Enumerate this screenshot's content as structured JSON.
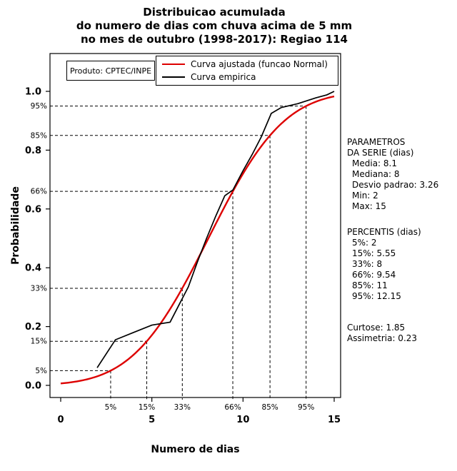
{
  "title": {
    "line1": "Distribuicao acumulada",
    "line2": "do numero de dias com chuva acima de 5 mm",
    "line3": "no mes de outubro (1998-2017): Regiao 114"
  },
  "axes": {
    "x_label": "Numero de dias",
    "y_label": "Probabilidade"
  },
  "legend": {
    "produto": "Produto: CPTEC/INPE",
    "entries": [
      {
        "label": "Curva ajustada (funcao Normal)",
        "color": "#dd0000"
      },
      {
        "label": "Curva empirica",
        "color": "#000000"
      }
    ]
  },
  "chart_data": {
    "type": "line",
    "title": "Distribuicao acumulada do numero de dias com chuva acima de 5 mm no mes de outubro (1998-2017): Regiao 114",
    "xlabel": "Numero de dias",
    "ylabel": "Probabilidade",
    "xlim": [
      0,
      15
    ],
    "ylim": [
      0,
      1
    ],
    "x_ticks": [
      0,
      5,
      10,
      15
    ],
    "y_ticks": [
      0,
      0.2,
      0.4,
      0.6,
      0.8,
      1.0
    ],
    "grid": false,
    "legend_position": "top",
    "series": [
      {
        "name": "Curva ajustada (funcao Normal)",
        "kind": "normal_cdf",
        "mean": 8.1,
        "sd": 3.26,
        "color": "#dd0000"
      },
      {
        "name": "Curva empirica",
        "kind": "polyline",
        "color": "#000000",
        "points": [
          [
            2,
            0.06
          ],
          [
            3,
            0.155
          ],
          [
            4,
            0.18
          ],
          [
            5,
            0.205
          ],
          [
            6,
            0.215
          ],
          [
            6.5,
            0.275
          ],
          [
            7,
            0.335
          ],
          [
            7.5,
            0.42
          ],
          [
            8,
            0.5
          ],
          [
            8.5,
            0.575
          ],
          [
            9,
            0.645
          ],
          [
            9.45,
            0.665
          ],
          [
            10,
            0.73
          ],
          [
            10.5,
            0.785
          ],
          [
            11,
            0.845
          ],
          [
            11.55,
            0.925
          ],
          [
            12.1,
            0.945
          ],
          [
            13,
            0.958
          ],
          [
            14,
            0.978
          ],
          [
            14.6,
            0.988
          ],
          [
            15,
            1.0
          ]
        ]
      }
    ],
    "percentile_guides": [
      {
        "label": "5%",
        "p": 0.05,
        "x": 2.74
      },
      {
        "label": "15%",
        "p": 0.15,
        "x": 4.72
      },
      {
        "label": "33%",
        "p": 0.33,
        "x": 6.67
      },
      {
        "label": "66%",
        "p": 0.66,
        "x": 9.44
      },
      {
        "label": "85%",
        "p": 0.85,
        "x": 11.48
      },
      {
        "label": "95%",
        "p": 0.95,
        "x": 13.46
      }
    ]
  },
  "side_panel": {
    "parametros_title_1": "PARAMETROS",
    "parametros_title_2": "DA SERIE (dias)",
    "serie_items": [
      "Media: 8.1",
      "Mediana: 8",
      "Desvio padrao: 3.26",
      "Min: 2",
      "Max: 15"
    ],
    "percentis_title": "PERCENTIS (dias)",
    "percentis_items": [
      "5%: 2",
      "15%: 5.55",
      "33%: 8",
      "66%: 9.54",
      "85%: 11",
      "95%: 12.15"
    ],
    "curtose": "Curtose: 1.85",
    "assimetria": "Assimetria: 0.23"
  }
}
